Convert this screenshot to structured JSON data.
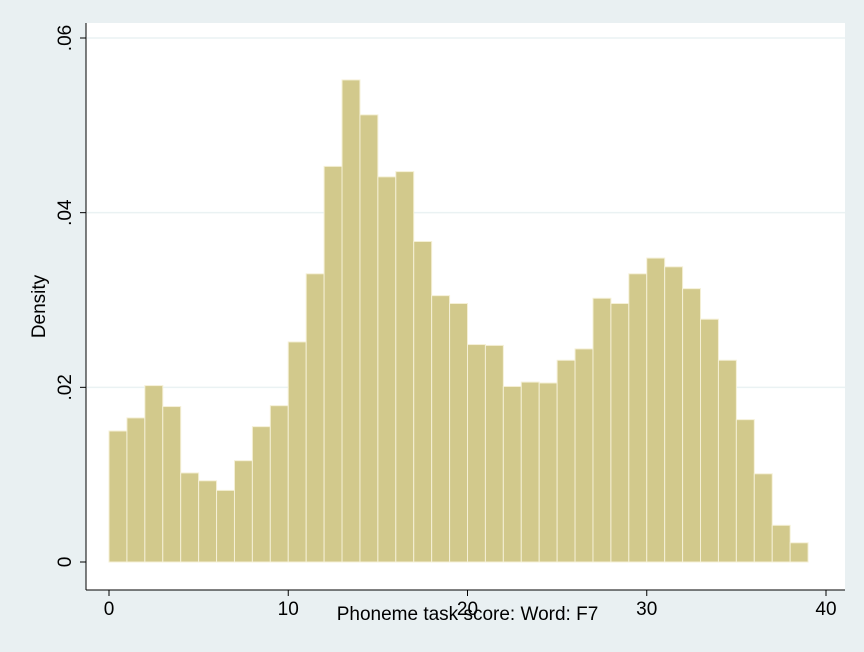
{
  "chart_data": {
    "type": "bar",
    "xlabel": "Phoneme task score: Word: F7",
    "ylabel": "Density",
    "xlim": [
      0,
      40
    ],
    "ylim": [
      0,
      0.06
    ],
    "x_ticks": [
      0,
      10,
      20,
      30,
      40
    ],
    "x_tick_labels": [
      "0",
      "10",
      "20",
      "30",
      "40"
    ],
    "y_ticks": [
      0,
      0.02,
      0.04,
      0.06
    ],
    "y_tick_labels": [
      "0",
      ".02",
      ".04",
      ".06"
    ],
    "grid": "horizontal",
    "bin_start": 0,
    "bin_width": 1.0,
    "bins": [
      {
        "x_start": 0,
        "x_end": 1,
        "density": 0.015
      },
      {
        "x_start": 1,
        "x_end": 2,
        "density": 0.0165
      },
      {
        "x_start": 2,
        "x_end": 3,
        "density": 0.0202
      },
      {
        "x_start": 3,
        "x_end": 4,
        "density": 0.0178
      },
      {
        "x_start": 4,
        "x_end": 5,
        "density": 0.0102
      },
      {
        "x_start": 5,
        "x_end": 6,
        "density": 0.0093
      },
      {
        "x_start": 6,
        "x_end": 7,
        "density": 0.0082
      },
      {
        "x_start": 7,
        "x_end": 8,
        "density": 0.0116
      },
      {
        "x_start": 8,
        "x_end": 9,
        "density": 0.0155
      },
      {
        "x_start": 9,
        "x_end": 10,
        "density": 0.0179
      },
      {
        "x_start": 10,
        "x_end": 11,
        "density": 0.0252
      },
      {
        "x_start": 11,
        "x_end": 12,
        "density": 0.033
      },
      {
        "x_start": 12,
        "x_end": 13,
        "density": 0.0453
      },
      {
        "x_start": 13,
        "x_end": 14,
        "density": 0.0552
      },
      {
        "x_start": 14,
        "x_end": 15,
        "density": 0.0512
      },
      {
        "x_start": 15,
        "x_end": 16,
        "density": 0.0441
      },
      {
        "x_start": 16,
        "x_end": 17,
        "density": 0.0447
      },
      {
        "x_start": 17,
        "x_end": 18,
        "density": 0.0367
      },
      {
        "x_start": 18,
        "x_end": 19,
        "density": 0.0305
      },
      {
        "x_start": 19,
        "x_end": 20,
        "density": 0.0296
      },
      {
        "x_start": 20,
        "x_end": 21,
        "density": 0.0249
      },
      {
        "x_start": 21,
        "x_end": 22,
        "density": 0.0248
      },
      {
        "x_start": 22,
        "x_end": 23,
        "density": 0.0201
      },
      {
        "x_start": 23,
        "x_end": 24,
        "density": 0.0206
      },
      {
        "x_start": 24,
        "x_end": 25,
        "density": 0.0205
      },
      {
        "x_start": 25,
        "x_end": 26,
        "density": 0.0231
      },
      {
        "x_start": 26,
        "x_end": 27,
        "density": 0.0244
      },
      {
        "x_start": 27,
        "x_end": 28,
        "density": 0.0302
      },
      {
        "x_start": 28,
        "x_end": 29,
        "density": 0.0296
      },
      {
        "x_start": 29,
        "x_end": 30,
        "density": 0.033
      },
      {
        "x_start": 30,
        "x_end": 31,
        "density": 0.0348
      },
      {
        "x_start": 31,
        "x_end": 32,
        "density": 0.0338
      },
      {
        "x_start": 32,
        "x_end": 33,
        "density": 0.0313
      },
      {
        "x_start": 33,
        "x_end": 34,
        "density": 0.0278
      },
      {
        "x_start": 34,
        "x_end": 35,
        "density": 0.0231
      },
      {
        "x_start": 35,
        "x_end": 36,
        "density": 0.0163
      },
      {
        "x_start": 36,
        "x_end": 37,
        "density": 0.0101
      },
      {
        "x_start": 37,
        "x_end": 38,
        "density": 0.0042
      },
      {
        "x_start": 38,
        "x_end": 39,
        "density": 0.0022
      }
    ],
    "colors": {
      "background": "#e9f0f2",
      "plot_region": "#ffffff",
      "bar_fill": "#d2c98c",
      "bar_stroke": "#f5f0d6",
      "grid": "#eaf2f3",
      "axis": "#000000"
    }
  }
}
